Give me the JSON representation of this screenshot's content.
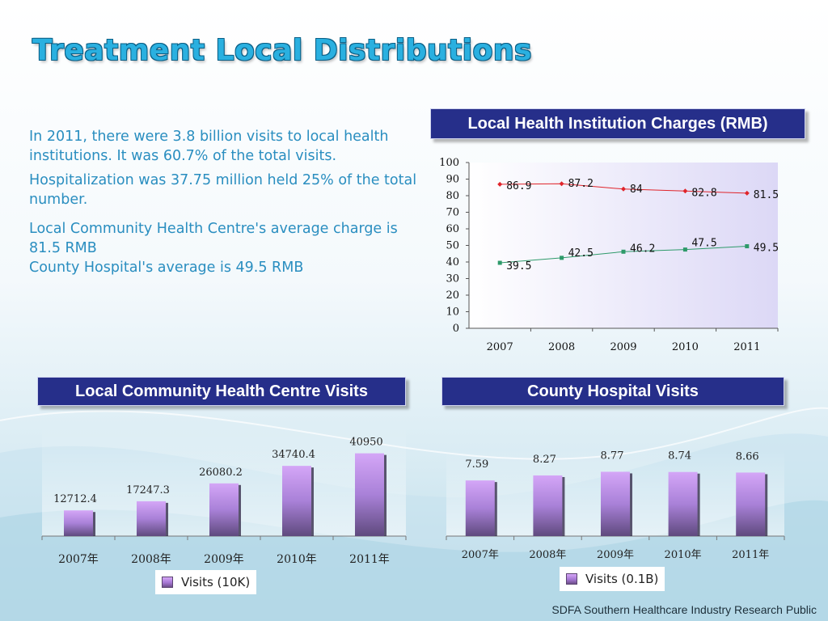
{
  "title": "Treatment Local Distributions",
  "summary": {
    "p1": "In 2011, there were 3.8 billion visits to local health institutions. It was 60.7% of the total visits.",
    "p2": "Hospitalization was 37.75 million held 25% of the total number.",
    "p3": "Local Community Health Centre's average charge is 81.5 RMB",
    "p4": "County Hospital's average is 49.5 RMB"
  },
  "colors": {
    "title": "#2ab0e0",
    "text": "#2a8ec0",
    "header_bg": "#262f8a",
    "series_red": "#e0242a",
    "series_green": "#2e9a6a"
  },
  "chart_data": [
    {
      "type": "line",
      "title": "Local Health Institution Charges (RMB)",
      "categories": [
        "2007",
        "2008",
        "2009",
        "2010",
        "2011"
      ],
      "ylim": [
        0,
        100
      ],
      "yticks": [
        0,
        10,
        20,
        30,
        40,
        50,
        60,
        70,
        80,
        90,
        100
      ],
      "series": [
        {
          "name": "Local Community Health Centre",
          "color": "#e0242a",
          "values": [
            86.9,
            87.2,
            84,
            82.8,
            81.5
          ],
          "labels": [
            "86.9",
            "87.2",
            "84",
            "82.8",
            "81.5"
          ]
        },
        {
          "name": "County Hospital",
          "color": "#2e9a6a",
          "values": [
            39.5,
            42.5,
            46.2,
            47.5,
            49.5
          ],
          "labels": [
            "39.5",
            "42.5",
            "46.2",
            "47.5",
            "49.5"
          ]
        }
      ]
    },
    {
      "type": "bar",
      "title": "Local Community Health Centre Visits",
      "categories": [
        "2007年",
        "2008年",
        "2009年",
        "2010年",
        "2011年"
      ],
      "values": [
        12712.4,
        17247.3,
        26080.2,
        34740.4,
        40950
      ],
      "labels": [
        "12712.4",
        "17247.3",
        "26080.2",
        "34740.4",
        "40950"
      ],
      "ylim": [
        0,
        46000
      ],
      "legend": "Visits (10K)"
    },
    {
      "type": "bar",
      "title": "County Hospital Visits",
      "categories": [
        "2007年",
        "2008年",
        "2009年",
        "2010年",
        "2011年"
      ],
      "values": [
        7.59,
        8.27,
        8.77,
        8.74,
        8.66
      ],
      "labels": [
        "7.59",
        "8.27",
        "8.77",
        "8.74",
        "8.66"
      ],
      "ylim": [
        0,
        9.7
      ],
      "legend": "Visits (0.1B)"
    }
  ],
  "source": "SDFA Southern Healthcare Industry Research Public"
}
